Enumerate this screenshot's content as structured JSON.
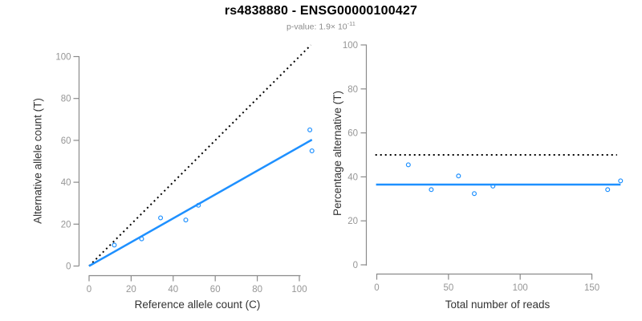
{
  "header": {
    "title": "rs4838880 - ENSG00000100427",
    "p_value_text": "p-value: 1.9× ",
    "p_value_base": "10",
    "p_value_exponent": "-11"
  },
  "colors": {
    "accent_blue": "#1E90FF",
    "dotted_black": "#000000",
    "axis_line": "#8a8a8a",
    "tick_label": "#969696",
    "axis_title": "#333333",
    "title": "#000000",
    "subtitle": "#8c8c8c",
    "background": "#ffffff"
  },
  "chart_data": [
    {
      "id": "allele-counts",
      "type": "scatter",
      "xlabel": "Reference allele count (C)",
      "ylabel": "Alternative allele count (T)",
      "xticks": [
        0,
        20,
        40,
        60,
        80,
        100
      ],
      "yticks": [
        0,
        20,
        40,
        60,
        80,
        100
      ],
      "xlim": [
        0,
        106
      ],
      "ylim": [
        0,
        106
      ],
      "grid": false,
      "points": [
        [
          12,
          10
        ],
        [
          25,
          13
        ],
        [
          34,
          23
        ],
        [
          46,
          22
        ],
        [
          52,
          29
        ],
        [
          105,
          65
        ],
        [
          106,
          55
        ]
      ],
      "lines": [
        {
          "name": "identity-line",
          "style": "dotted",
          "color": "#000000",
          "width": 2,
          "x1": 0,
          "y1": 0,
          "x2": 105.5,
          "y2": 105.5
        },
        {
          "name": "regression-line",
          "style": "solid",
          "color": "#1E90FF",
          "width": 2.5,
          "x1": 0,
          "y1": 0,
          "x2": 106,
          "y2": 60.3
        }
      ]
    },
    {
      "id": "percentage-alternative",
      "type": "scatter",
      "xlabel": "Total number of reads",
      "ylabel": "Percentage alternative (T)",
      "xticks": [
        0,
        50,
        100,
        150
      ],
      "yticks": [
        0,
        20,
        40,
        60,
        80,
        100
      ],
      "xlim": [
        0,
        170
      ],
      "ylim": [
        0,
        100
      ],
      "grid": false,
      "points": [
        [
          22,
          45.5
        ],
        [
          38,
          34.2
        ],
        [
          57,
          40.4
        ],
        [
          68,
          32.4
        ],
        [
          81,
          35.8
        ],
        [
          161,
          34.2
        ],
        [
          170,
          38.2
        ]
      ],
      "lines": [
        {
          "name": "fifty-percent-line",
          "style": "dotted",
          "color": "#000000",
          "width": 2,
          "x1": -1,
          "y1": 50,
          "x2": 167.5,
          "y2": 50
        },
        {
          "name": "mean-percentage-line",
          "style": "solid",
          "color": "#1E90FF",
          "width": 2.5,
          "x1": -0.5,
          "y1": 36.5,
          "x2": 170,
          "y2": 36.5
        }
      ]
    }
  ]
}
